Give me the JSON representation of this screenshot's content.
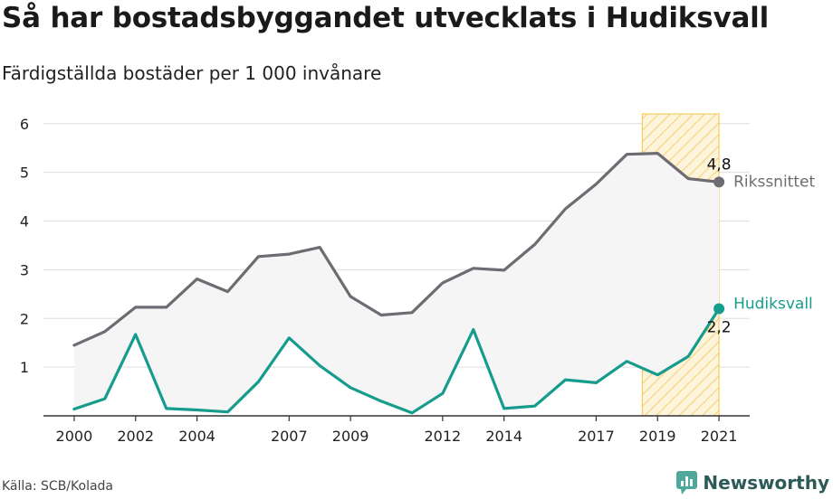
{
  "title": "Så har bostadsbyggandet utvecklats i Hudiksvall",
  "subtitle": "Färdigställda bostäder per 1 000 invånare",
  "source": "Källa: SCB/Kolada",
  "brand": {
    "name": "Newsworthy",
    "icon": "newsworthy-logo-icon"
  },
  "chart_data": {
    "type": "line",
    "x": [
      2000,
      2001,
      2002,
      2003,
      2004,
      2005,
      2006,
      2007,
      2008,
      2009,
      2010,
      2011,
      2012,
      2013,
      2014,
      2015,
      2016,
      2017,
      2018,
      2019,
      2020,
      2021
    ],
    "x_ticks": [
      "2000",
      "2002",
      "2004",
      "2007",
      "2009",
      "2012",
      "2014",
      "2017",
      "2019",
      "2021"
    ],
    "y_ticks": [
      "1",
      "2",
      "3",
      "4",
      "5",
      "6"
    ],
    "ylim": [
      0,
      6.2
    ],
    "xlim": [
      1999.0,
      2022.0
    ],
    "grid": true,
    "highlight_range": [
      2018.5,
      2021.0
    ],
    "series": [
      {
        "name": "Rikssnittet",
        "color": "#6e6c72",
        "values": [
          1.45,
          1.73,
          2.23,
          2.23,
          2.81,
          2.55,
          3.27,
          3.32,
          3.46,
          2.45,
          2.07,
          2.12,
          2.73,
          3.03,
          2.99,
          3.52,
          4.25,
          4.76,
          5.37,
          5.39,
          4.87,
          4.8
        ],
        "end_label": "4,8"
      },
      {
        "name": "Hudiksvall",
        "color": "#169c8d",
        "values": [
          0.14,
          0.35,
          1.67,
          0.15,
          0.12,
          0.08,
          0.7,
          1.6,
          1.03,
          0.58,
          0.3,
          0.06,
          0.46,
          1.77,
          0.15,
          0.2,
          0.74,
          0.68,
          1.12,
          0.84,
          1.22,
          2.2
        ],
        "end_label": "2,2"
      }
    ],
    "fill_between_color": "#f5f5f6",
    "highlight_color": "#f5c542"
  }
}
